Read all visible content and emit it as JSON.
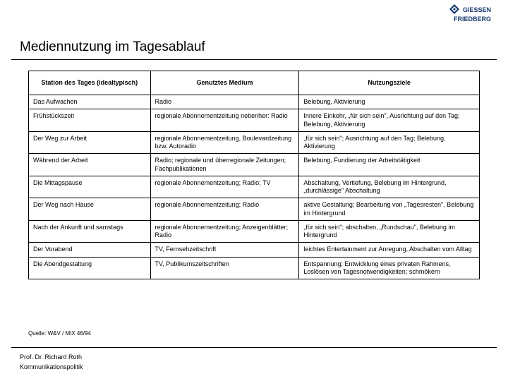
{
  "logo": {
    "line1": "GIESSEN",
    "line2": "FRIEDBERG",
    "prefix": ""
  },
  "title": "Mediennutzung im Tagesablauf",
  "table": {
    "columns": [
      "Station des Tages (idealtypisch)",
      "Genutztes Medium",
      "Nutzungsziele"
    ],
    "rows": [
      [
        "Das Aufwachen",
        "Radio",
        "Belebung, Aktivierung"
      ],
      [
        "Frühstückszeit",
        "regionale Abonnementzeitung nebenher: Radio",
        "Innere Einkehr, „für sich sein\", Ausrichtung auf den Tag; Belebung, Aktivierung"
      ],
      [
        "Der Weg zur Arbeit",
        "regionale Abonnementzeitung, Boulevardzeitung bzw. Autoradio",
        "„für sich sein\"; Ausrichtung auf den Tag; Belebung, Aktivierung"
      ],
      [
        "Während der Arbeit",
        "Radio; regionale und überregionale Zeitungen; Fachpublikationen",
        "Belebung, Fundierung der Arbeitstätigkeit"
      ],
      [
        "Die Mittagspause",
        "regionale Abonnementzeitung; Radio; TV",
        "Abschaltung, Vertiefung, Belebung im Hintergrund, „durchlässige\" Abschaltung"
      ],
      [
        "Der Weg nach Hause",
        "regionale Abonnementzeitung; Radio",
        "aktive Gestaltung; Bearbeitung von „Tagesresten\", Belebung im Hintergrund"
      ],
      [
        "Nach der Ankunft und samstags",
        "regionale Abonnementzeitung; Anzeigenblätter; Radio",
        "„für sich sein\"; abschalten, „Rundschau\", Belebung im Hintergrund"
      ],
      [
        "Der Vorabend",
        "TV, Fernsehzeitschrift",
        "leichtes Entertainment zur Anregung, Abschalten vom Alltag"
      ],
      [
        "Die Abendgestaltung",
        "TV, Publikumszeitschriften",
        "Entspannung; Entwicklung eines privaten Rahmens, Loslösen von Tagesnotwendigkeiten; schmökern"
      ]
    ]
  },
  "source": "Quelle: W&V / MIX 46/94",
  "footer": {
    "line1": "Prof. Dr. Richard Roth",
    "line2": "Kommunikationspolitik"
  }
}
